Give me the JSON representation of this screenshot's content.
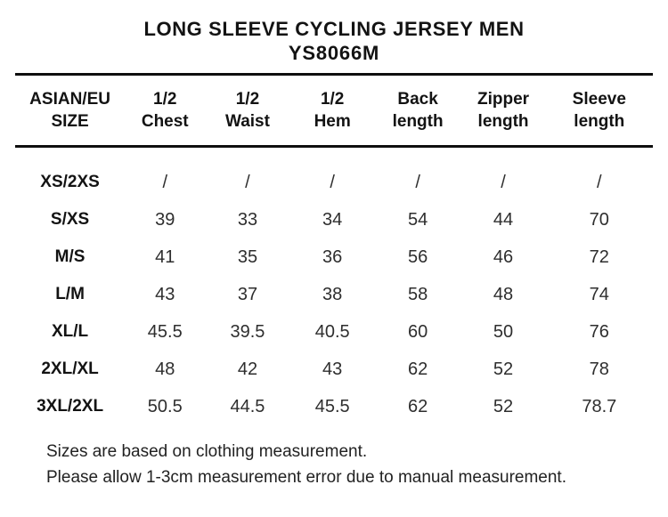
{
  "header": {
    "title": "LONG SLEEVE CYCLING JERSEY MEN",
    "model": "YS8066M"
  },
  "table": {
    "columns": [
      {
        "line1": "ASIAN/EU",
        "line2": "SIZE"
      },
      {
        "line1": "1/2",
        "line2": "Chest"
      },
      {
        "line1": "1/2",
        "line2": "Waist"
      },
      {
        "line1": "1/2",
        "line2": "Hem"
      },
      {
        "line1": "Back",
        "line2": "length"
      },
      {
        "line1": "Zipper",
        "line2": "length"
      },
      {
        "line1": "Sleeve",
        "line2": "length"
      }
    ],
    "rows": [
      {
        "size": "XS/2XS",
        "values": [
          "/",
          "/",
          "/",
          "/",
          "/",
          "/"
        ]
      },
      {
        "size": "S/XS",
        "values": [
          "39",
          "33",
          "34",
          "54",
          "44",
          "70"
        ]
      },
      {
        "size": "M/S",
        "values": [
          "41",
          "35",
          "36",
          "56",
          "46",
          "72"
        ]
      },
      {
        "size": "L/M",
        "values": [
          "43",
          "37",
          "38",
          "58",
          "48",
          "74"
        ]
      },
      {
        "size": "XL/L",
        "values": [
          "45.5",
          "39.5",
          "40.5",
          "60",
          "50",
          "76"
        ]
      },
      {
        "size": "2XL/XL",
        "values": [
          "48",
          "42",
          "43",
          "62",
          "52",
          "78"
        ]
      },
      {
        "size": "3XL/2XL",
        "values": [
          "50.5",
          "44.5",
          "45.5",
          "62",
          "52",
          "78.7"
        ]
      }
    ]
  },
  "notes": [
    "Sizes are based on clothing measurement.",
    "Please allow 1-3cm measurement error due to manual measurement."
  ],
  "colors": {
    "text": "#141414",
    "rule": "#0e0e0e",
    "background": "#ffffff"
  }
}
